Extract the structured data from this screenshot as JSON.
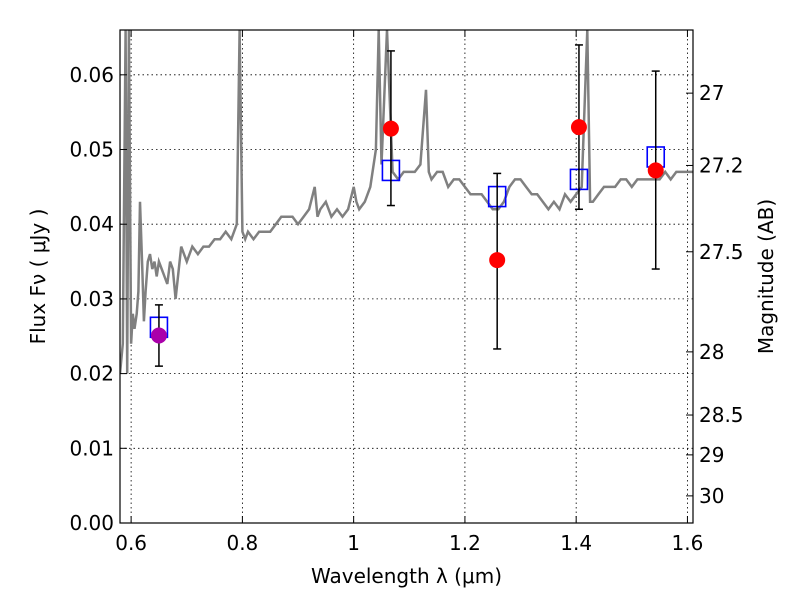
{
  "chart_data": {
    "type": "scatter",
    "xlabel": "Wavelength  λ (μm)",
    "ylabel": "Flux  Fν  ( μJy )",
    "ylabel_right": "Magnitude (AB)",
    "xlim": [
      0.58,
      1.61
    ],
    "ylim": [
      0.0,
      0.066
    ],
    "grid": true,
    "x_ticks": [
      {
        "value": 0.6,
        "label": "0.6"
      },
      {
        "value": 0.8,
        "label": "0.8"
      },
      {
        "value": 1.0,
        "label": "1"
      },
      {
        "value": 1.2,
        "label": "1.2"
      },
      {
        "value": 1.4,
        "label": "1.4"
      },
      {
        "value": 1.6,
        "label": "1.6"
      }
    ],
    "y_ticks": [
      {
        "value": 0.0,
        "label": "0.00"
      },
      {
        "value": 0.01,
        "label": "0.01"
      },
      {
        "value": 0.02,
        "label": "0.02"
      },
      {
        "value": 0.03,
        "label": "0.03"
      },
      {
        "value": 0.04,
        "label": "0.04"
      },
      {
        "value": 0.05,
        "label": "0.05"
      },
      {
        "value": 0.06,
        "label": "0.06"
      }
    ],
    "mag_ticks": [
      {
        "mag": 27,
        "label": "27"
      },
      {
        "mag": 27.2,
        "label": "27.2"
      },
      {
        "mag": 27.5,
        "label": "27.5"
      },
      {
        "mag": 28,
        "label": "28"
      },
      {
        "mag": 28.5,
        "label": "28.5"
      },
      {
        "mag": 29,
        "label": "29"
      },
      {
        "mag": 30,
        "label": "30"
      }
    ],
    "series": [
      {
        "type": "line",
        "color": "#808080",
        "x": [
          0.58,
          0.585,
          0.59,
          0.593,
          0.596,
          0.6,
          0.603,
          0.606,
          0.61,
          0.613,
          0.616,
          0.62,
          0.623,
          0.626,
          0.63,
          0.634,
          0.638,
          0.642,
          0.646,
          0.65,
          0.655,
          0.66,
          0.665,
          0.67,
          0.675,
          0.68,
          0.69,
          0.7,
          0.71,
          0.72,
          0.73,
          0.74,
          0.75,
          0.76,
          0.77,
          0.78,
          0.79,
          0.795,
          0.8,
          0.805,
          0.81,
          0.82,
          0.83,
          0.84,
          0.85,
          0.86,
          0.87,
          0.88,
          0.89,
          0.9,
          0.91,
          0.92,
          0.93,
          0.935,
          0.94,
          0.95,
          0.96,
          0.97,
          0.98,
          0.99,
          1.0,
          1.005,
          1.01,
          1.02,
          1.03,
          1.04,
          1.045,
          1.05,
          1.06,
          1.07,
          1.08,
          1.09,
          1.1,
          1.11,
          1.12,
          1.13,
          1.135,
          1.14,
          1.15,
          1.16,
          1.17,
          1.18,
          1.19,
          1.2,
          1.21,
          1.22,
          1.23,
          1.24,
          1.25,
          1.26,
          1.27,
          1.28,
          1.29,
          1.3,
          1.31,
          1.32,
          1.33,
          1.34,
          1.35,
          1.36,
          1.37,
          1.38,
          1.39,
          1.4,
          1.41,
          1.42,
          1.425,
          1.43,
          1.44,
          1.45,
          1.46,
          1.47,
          1.48,
          1.49,
          1.5,
          1.51,
          1.52,
          1.53,
          1.54,
          1.55,
          1.56,
          1.57,
          1.58,
          1.59,
          1.6,
          1.61
        ],
        "y": [
          0.02,
          0.024,
          0.066,
          0.02,
          0.066,
          0.024,
          0.028,
          0.026,
          0.028,
          0.031,
          0.043,
          0.034,
          0.027,
          0.031,
          0.035,
          0.036,
          0.034,
          0.035,
          0.033,
          0.035,
          0.034,
          0.033,
          0.032,
          0.035,
          0.034,
          0.03,
          0.037,
          0.035,
          0.037,
          0.036,
          0.037,
          0.037,
          0.038,
          0.038,
          0.039,
          0.038,
          0.04,
          0.066,
          0.039,
          0.038,
          0.039,
          0.038,
          0.039,
          0.039,
          0.039,
          0.04,
          0.041,
          0.041,
          0.041,
          0.04,
          0.041,
          0.042,
          0.045,
          0.041,
          0.042,
          0.043,
          0.041,
          0.042,
          0.041,
          0.042,
          0.045,
          0.043,
          0.042,
          0.043,
          0.045,
          0.05,
          0.066,
          0.048,
          0.066,
          0.047,
          0.046,
          0.047,
          0.047,
          0.047,
          0.048,
          0.058,
          0.047,
          0.046,
          0.047,
          0.047,
          0.045,
          0.046,
          0.046,
          0.045,
          0.044,
          0.044,
          0.044,
          0.043,
          0.042,
          0.042,
          0.043,
          0.045,
          0.046,
          0.046,
          0.045,
          0.044,
          0.044,
          0.043,
          0.042,
          0.043,
          0.042,
          0.044,
          0.043,
          0.044,
          0.045,
          0.066,
          0.043,
          0.043,
          0.044,
          0.045,
          0.045,
          0.045,
          0.046,
          0.046,
          0.045,
          0.046,
          0.046,
          0.046,
          0.046,
          0.046,
          0.047,
          0.046,
          0.047,
          0.047,
          0.047,
          0.047
        ]
      },
      {
        "type": "points",
        "marker": "square-open",
        "color": "#0000ff",
        "x": [
          0.65,
          1.067,
          1.258,
          1.405,
          1.543
        ],
        "y": [
          0.0262,
          0.0472,
          0.0437,
          0.046,
          0.049
        ]
      },
      {
        "type": "points",
        "marker": "circle",
        "color": "#ff0000",
        "x": [
          1.067,
          1.258,
          1.405,
          1.543
        ],
        "y": [
          0.0528,
          0.0352,
          0.053,
          0.0472
        ],
        "yerr_low": [
          0.0425,
          0.0233,
          0.042,
          0.034
        ],
        "yerr_high": [
          0.0632,
          0.0468,
          0.064,
          0.0605
        ]
      },
      {
        "type": "points",
        "marker": "circle",
        "color": "#aa00aa",
        "x": [
          0.65
        ],
        "y": [
          0.0251
        ],
        "yerr_low": [
          0.021
        ],
        "yerr_high": [
          0.0292
        ]
      }
    ]
  }
}
